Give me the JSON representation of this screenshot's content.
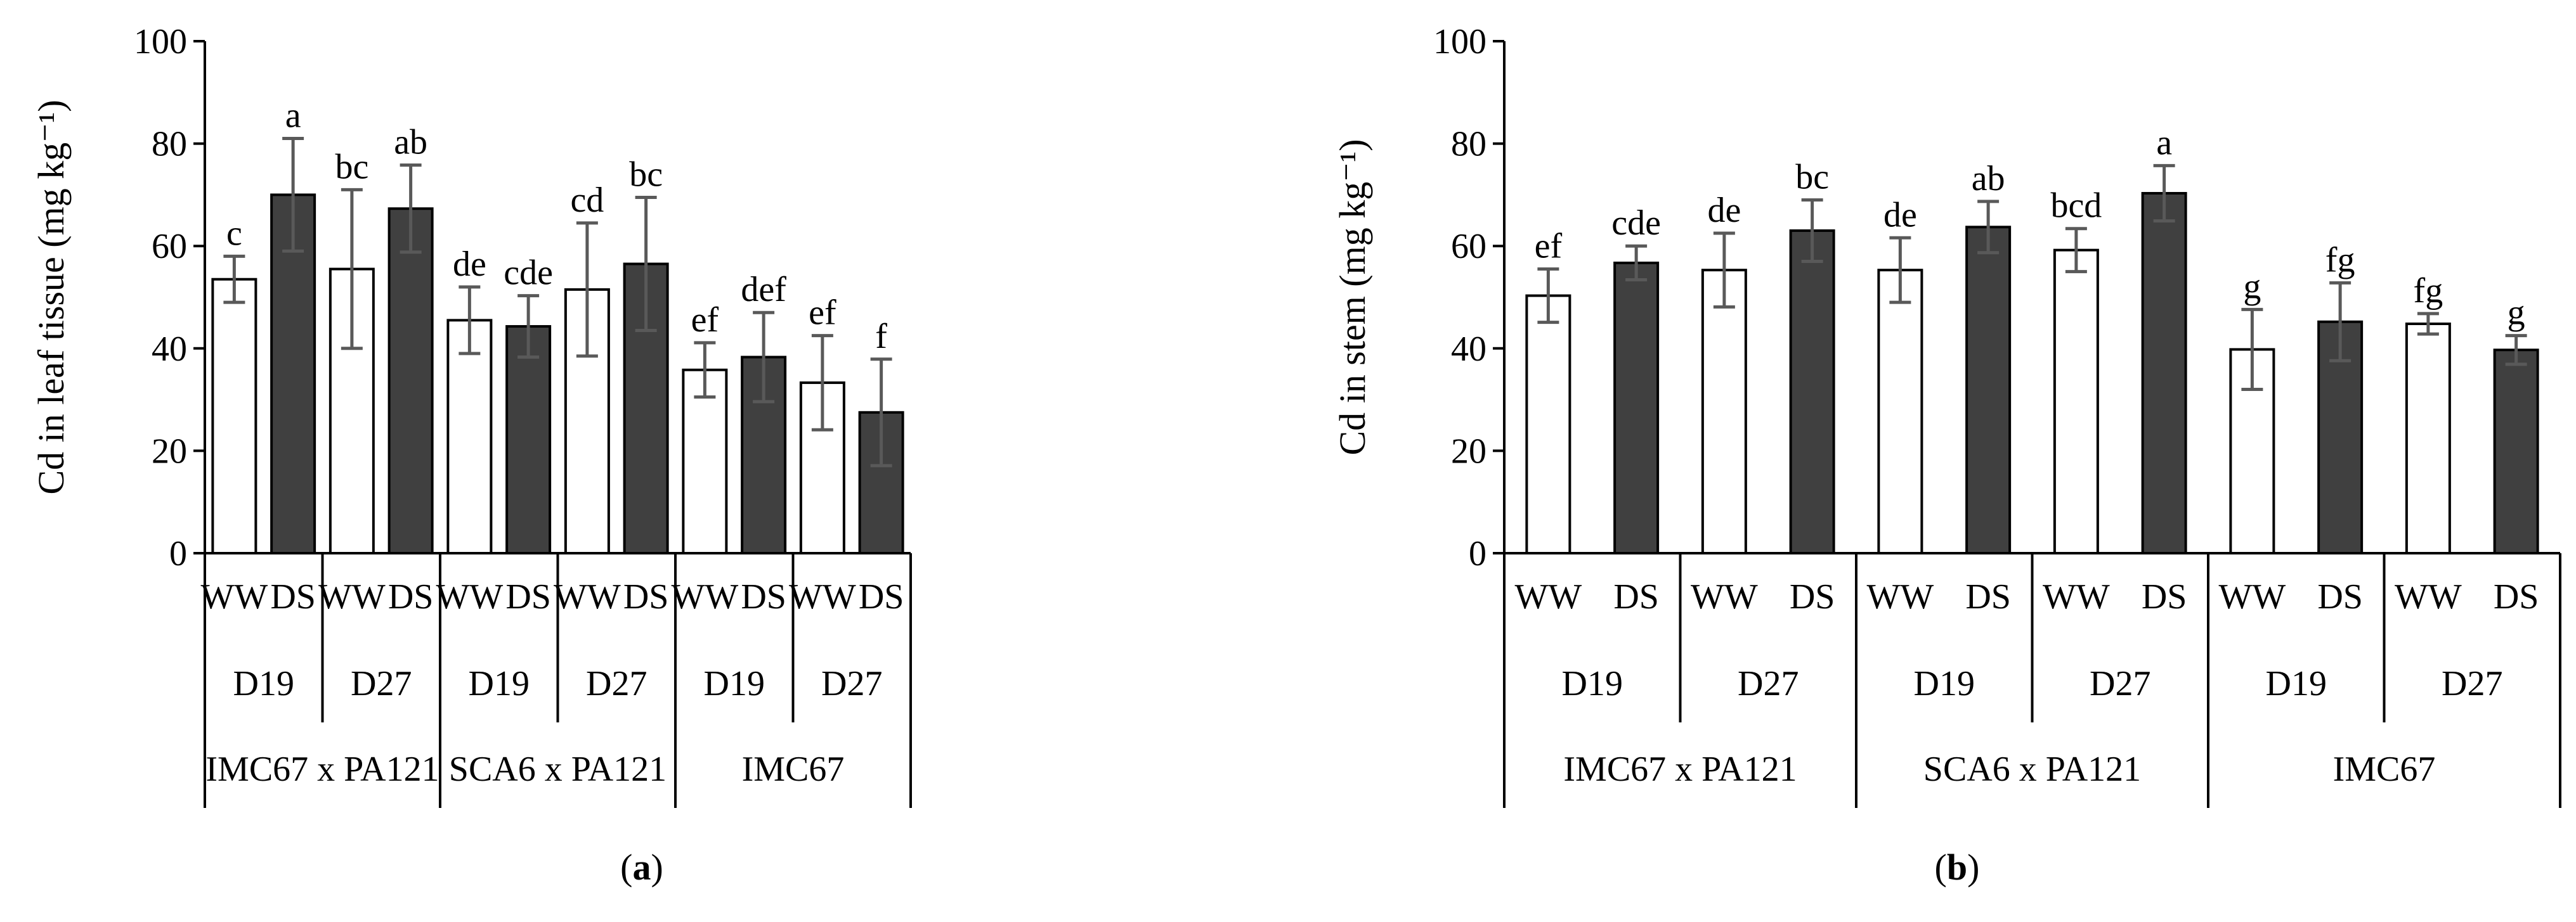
{
  "chart_data": [
    {
      "type": "bar",
      "panel_label": {
        "open": "(",
        "letter": "a",
        "close": ")"
      },
      "ylabel": "Cd in leaf tissue (mg kg⁻¹)",
      "ylim": [
        0,
        100
      ],
      "yticks": [
        "0",
        "20",
        "40",
        "60",
        "80",
        "100"
      ],
      "groups": [
        "IMC67 x PA121",
        "SCA6 x PA121",
        "IMC67"
      ],
      "days": [
        "D19",
        "D27",
        "D19",
        "D27",
        "D19",
        "D27"
      ],
      "treatments": [
        "WW",
        "DS",
        "WW",
        "DS",
        "WW",
        "DS",
        "WW",
        "DS",
        "WW",
        "DS",
        "WW",
        "DS"
      ],
      "values": [
        53.5,
        70,
        55.5,
        67.3,
        45.5,
        44.3,
        51.5,
        56.5,
        35.8,
        38.3,
        33.3,
        27.5
      ],
      "errors": [
        4.5,
        11,
        15.5,
        8.5,
        6.5,
        6,
        13,
        13,
        5.3,
        8.7,
        9.2,
        10.4
      ],
      "letters": [
        "c",
        "a",
        "bc",
        "ab",
        "de",
        "cde",
        "cd",
        "bc",
        "ef",
        "def",
        "ef",
        "f"
      ],
      "colors": {
        "WW": "#ffffff",
        "DS": "#404040",
        "error": "#595959"
      }
    },
    {
      "type": "bar",
      "panel_label": {
        "open": "(",
        "letter": "b",
        "close": ")"
      },
      "ylabel": "Cd in stem (mg kg⁻¹)",
      "ylim": [
        0,
        100
      ],
      "yticks": [
        "0",
        "20",
        "40",
        "60",
        "80",
        "100"
      ],
      "groups": [
        "IMC67 x PA121",
        "SCA6 x PA121",
        "IMC67"
      ],
      "days": [
        "D19",
        "D27",
        "D19",
        "D27",
        "D19",
        "D27"
      ],
      "treatments": [
        "WW",
        "DS",
        "WW",
        "DS",
        "WW",
        "DS",
        "WW",
        "DS",
        "WW",
        "DS",
        "WW",
        "DS"
      ],
      "values": [
        50.3,
        56.7,
        55.3,
        63,
        55.3,
        63.7,
        59.2,
        70.3,
        39.8,
        45.2,
        44.8,
        39.7
      ],
      "errors": [
        5.2,
        3.3,
        7.2,
        6,
        6.3,
        5,
        4.2,
        5.4,
        7.8,
        7.6,
        2,
        2.8
      ],
      "letters": [
        "ef",
        "cde",
        "de",
        "bc",
        "de",
        "ab",
        "bcd",
        "a",
        "g",
        "fg",
        "fg",
        "g"
      ],
      "colors": {
        "WW": "#ffffff",
        "DS": "#404040",
        "error": "#595959"
      }
    }
  ]
}
